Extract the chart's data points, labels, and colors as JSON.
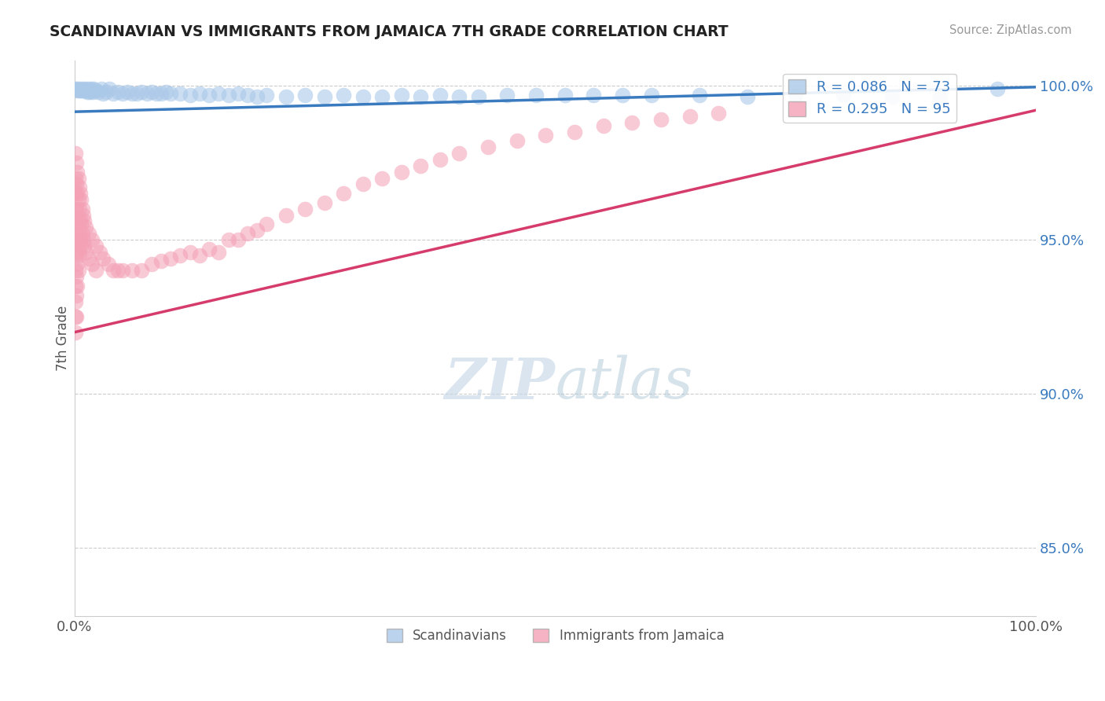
{
  "title": "SCANDINAVIAN VS IMMIGRANTS FROM JAMAICA 7TH GRADE CORRELATION CHART",
  "source": "Source: ZipAtlas.com",
  "ylabel": "7th Grade",
  "xmin": 0.0,
  "xmax": 1.0,
  "ymin": 0.828,
  "ymax": 1.008,
  "y_ticks": [
    0.85,
    0.9,
    0.95,
    1.0
  ],
  "y_tick_labels": [
    "85.0%",
    "90.0%",
    "95.0%",
    "100.0%"
  ],
  "x_tick_labels": [
    "0.0%",
    "100.0%"
  ],
  "blue_color": "#aac8e8",
  "pink_color": "#f4a0b5",
  "blue_line_color": "#3a7abf",
  "pink_line_color": "#d63c6b",
  "legend_blue_label": "R = 0.086   N = 73",
  "legend_pink_label": "R = 0.295   N = 95",
  "blue_line": [
    [
      0.0,
      0.9915
    ],
    [
      1.0,
      0.9995
    ]
  ],
  "pink_line": [
    [
      0.0,
      0.92
    ],
    [
      1.0,
      0.992
    ]
  ],
  "blue_scatter": [
    [
      0.001,
      0.999
    ],
    [
      0.002,
      0.9985
    ],
    [
      0.003,
      0.999
    ],
    [
      0.004,
      0.9985
    ],
    [
      0.005,
      0.999
    ],
    [
      0.006,
      0.9985
    ],
    [
      0.007,
      0.9985
    ],
    [
      0.008,
      0.999
    ],
    [
      0.009,
      0.9985
    ],
    [
      0.01,
      0.9985
    ],
    [
      0.011,
      0.999
    ],
    [
      0.012,
      0.9985
    ],
    [
      0.013,
      0.998
    ],
    [
      0.014,
      0.999
    ],
    [
      0.015,
      0.9985
    ],
    [
      0.016,
      0.998
    ],
    [
      0.017,
      0.999
    ],
    [
      0.018,
      0.9985
    ],
    [
      0.019,
      0.998
    ],
    [
      0.02,
      0.999
    ],
    [
      0.022,
      0.9985
    ],
    [
      0.025,
      0.998
    ],
    [
      0.028,
      0.999
    ],
    [
      0.03,
      0.9975
    ],
    [
      0.033,
      0.998
    ],
    [
      0.036,
      0.999
    ],
    [
      0.04,
      0.9975
    ],
    [
      0.045,
      0.998
    ],
    [
      0.05,
      0.9975
    ],
    [
      0.055,
      0.998
    ],
    [
      0.06,
      0.9975
    ],
    [
      0.065,
      0.9975
    ],
    [
      0.07,
      0.998
    ],
    [
      0.075,
      0.9975
    ],
    [
      0.08,
      0.998
    ],
    [
      0.085,
      0.9975
    ],
    [
      0.09,
      0.9975
    ],
    [
      0.095,
      0.998
    ],
    [
      0.1,
      0.9975
    ],
    [
      0.11,
      0.9975
    ],
    [
      0.12,
      0.997
    ],
    [
      0.13,
      0.9975
    ],
    [
      0.14,
      0.997
    ],
    [
      0.15,
      0.9975
    ],
    [
      0.16,
      0.997
    ],
    [
      0.17,
      0.9975
    ],
    [
      0.18,
      0.997
    ],
    [
      0.19,
      0.9965
    ],
    [
      0.2,
      0.997
    ],
    [
      0.22,
      0.9965
    ],
    [
      0.24,
      0.997
    ],
    [
      0.26,
      0.9965
    ],
    [
      0.28,
      0.997
    ],
    [
      0.3,
      0.9965
    ],
    [
      0.32,
      0.9965
    ],
    [
      0.34,
      0.997
    ],
    [
      0.36,
      0.9965
    ],
    [
      0.38,
      0.997
    ],
    [
      0.4,
      0.9965
    ],
    [
      0.42,
      0.9965
    ],
    [
      0.45,
      0.997
    ],
    [
      0.48,
      0.997
    ],
    [
      0.51,
      0.997
    ],
    [
      0.54,
      0.997
    ],
    [
      0.57,
      0.997
    ],
    [
      0.6,
      0.997
    ],
    [
      0.65,
      0.997
    ],
    [
      0.7,
      0.9965
    ],
    [
      0.75,
      0.997
    ],
    [
      0.8,
      0.997
    ],
    [
      0.85,
      0.9965
    ],
    [
      0.9,
      0.9965
    ],
    [
      0.96,
      0.999
    ]
  ],
  "pink_scatter": [
    [
      0.001,
      0.978
    ],
    [
      0.001,
      0.97
    ],
    [
      0.001,
      0.965
    ],
    [
      0.001,
      0.96
    ],
    [
      0.001,
      0.955
    ],
    [
      0.001,
      0.95
    ],
    [
      0.001,
      0.945
    ],
    [
      0.001,
      0.94
    ],
    [
      0.001,
      0.935
    ],
    [
      0.001,
      0.93
    ],
    [
      0.001,
      0.925
    ],
    [
      0.001,
      0.92
    ],
    [
      0.002,
      0.975
    ],
    [
      0.002,
      0.968
    ],
    [
      0.002,
      0.96
    ],
    [
      0.002,
      0.953
    ],
    [
      0.002,
      0.946
    ],
    [
      0.002,
      0.938
    ],
    [
      0.002,
      0.932
    ],
    [
      0.002,
      0.925
    ],
    [
      0.003,
      0.972
    ],
    [
      0.003,
      0.965
    ],
    [
      0.003,
      0.957
    ],
    [
      0.003,
      0.95
    ],
    [
      0.003,
      0.942
    ],
    [
      0.003,
      0.935
    ],
    [
      0.004,
      0.97
    ],
    [
      0.004,
      0.963
    ],
    [
      0.004,
      0.955
    ],
    [
      0.004,
      0.947
    ],
    [
      0.004,
      0.94
    ],
    [
      0.005,
      0.967
    ],
    [
      0.005,
      0.96
    ],
    [
      0.005,
      0.952
    ],
    [
      0.005,
      0.945
    ],
    [
      0.006,
      0.965
    ],
    [
      0.006,
      0.957
    ],
    [
      0.006,
      0.95
    ],
    [
      0.007,
      0.963
    ],
    [
      0.007,
      0.955
    ],
    [
      0.007,
      0.948
    ],
    [
      0.008,
      0.96
    ],
    [
      0.008,
      0.952
    ],
    [
      0.009,
      0.958
    ],
    [
      0.009,
      0.95
    ],
    [
      0.01,
      0.956
    ],
    [
      0.01,
      0.948
    ],
    [
      0.012,
      0.954
    ],
    [
      0.012,
      0.946
    ],
    [
      0.015,
      0.952
    ],
    [
      0.015,
      0.944
    ],
    [
      0.018,
      0.95
    ],
    [
      0.018,
      0.942
    ],
    [
      0.022,
      0.948
    ],
    [
      0.022,
      0.94
    ],
    [
      0.026,
      0.946
    ],
    [
      0.03,
      0.944
    ],
    [
      0.035,
      0.942
    ],
    [
      0.04,
      0.94
    ],
    [
      0.045,
      0.94
    ],
    [
      0.05,
      0.94
    ],
    [
      0.06,
      0.94
    ],
    [
      0.07,
      0.94
    ],
    [
      0.08,
      0.942
    ],
    [
      0.09,
      0.943
    ],
    [
      0.1,
      0.944
    ],
    [
      0.11,
      0.945
    ],
    [
      0.12,
      0.946
    ],
    [
      0.13,
      0.945
    ],
    [
      0.14,
      0.947
    ],
    [
      0.15,
      0.946
    ],
    [
      0.16,
      0.95
    ],
    [
      0.17,
      0.95
    ],
    [
      0.18,
      0.952
    ],
    [
      0.19,
      0.953
    ],
    [
      0.2,
      0.955
    ],
    [
      0.22,
      0.958
    ],
    [
      0.24,
      0.96
    ],
    [
      0.26,
      0.962
    ],
    [
      0.28,
      0.965
    ],
    [
      0.3,
      0.968
    ],
    [
      0.32,
      0.97
    ],
    [
      0.34,
      0.972
    ],
    [
      0.36,
      0.974
    ],
    [
      0.38,
      0.976
    ],
    [
      0.4,
      0.978
    ],
    [
      0.43,
      0.98
    ],
    [
      0.46,
      0.982
    ],
    [
      0.49,
      0.984
    ],
    [
      0.52,
      0.985
    ],
    [
      0.55,
      0.987
    ],
    [
      0.58,
      0.988
    ],
    [
      0.61,
      0.989
    ],
    [
      0.64,
      0.99
    ],
    [
      0.67,
      0.991
    ]
  ],
  "watermark_zip": "ZIP",
  "watermark_atlas": "atlas",
  "background_color": "#ffffff",
  "grid_color": "#cccccc"
}
